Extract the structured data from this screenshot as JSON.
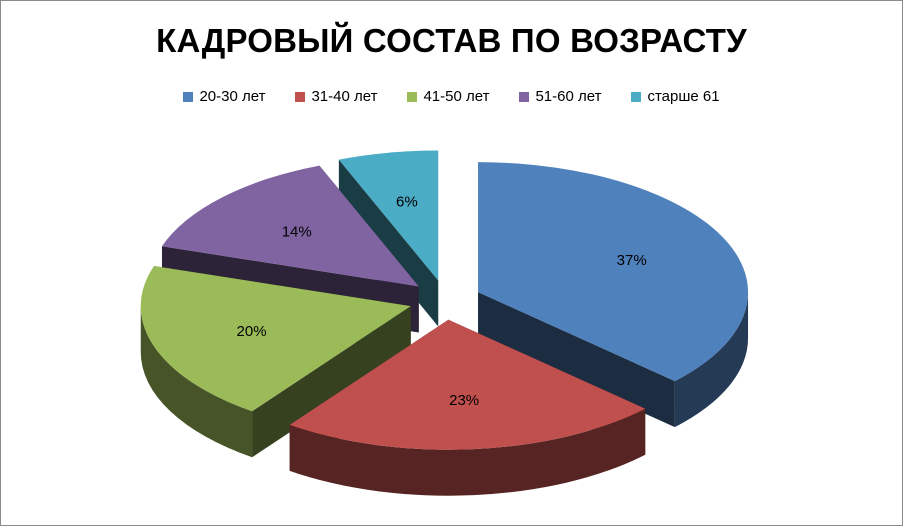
{
  "chart_data": {
    "type": "pie",
    "title": "КАДРОВЫЙ СОСТАВ ПО ВОЗРАСТУ",
    "legend_position": "top",
    "style": "3d-exploded",
    "slices": [
      {
        "label": "20-30 лет",
        "value": 37,
        "value_label": "37%",
        "color": "#4F81BD"
      },
      {
        "label": "31-40 лет",
        "value": 23,
        "value_label": "23%",
        "color": "#C0504D"
      },
      {
        "label": "41-50 лет",
        "value": 20,
        "value_label": "20%",
        "color": "#9BBB59"
      },
      {
        "label": "51-60 лет",
        "value": 14,
        "value_label": "14%",
        "color": "#8064A2"
      },
      {
        "label": "старше 61",
        "value": 6,
        "value_label": "6%",
        "color": "#4BACC6"
      }
    ]
  }
}
